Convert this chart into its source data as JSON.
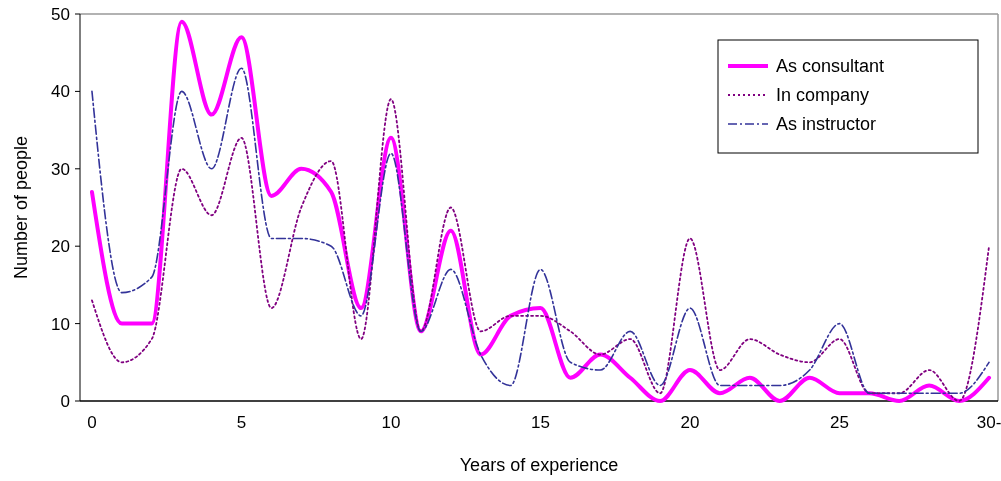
{
  "chart_data": {
    "type": "line",
    "xlabel": "Years of experience",
    "ylabel": "Number of people",
    "x": [
      0,
      1,
      2,
      3,
      4,
      5,
      6,
      7,
      8,
      9,
      10,
      11,
      12,
      13,
      14,
      15,
      16,
      17,
      18,
      19,
      20,
      21,
      22,
      23,
      24,
      25,
      26,
      27,
      28,
      29,
      30
    ],
    "xlim": [
      -0.4,
      30.3
    ],
    "xticks": [
      0,
      5,
      10,
      15,
      20,
      25,
      {
        "value": 30,
        "label": "30-"
      }
    ],
    "ylim": [
      0,
      50
    ],
    "yticks": [
      0,
      10,
      20,
      30,
      40,
      50
    ],
    "grid": false,
    "legend": "top right",
    "marker": "none",
    "series": [
      {
        "name": "As consultant",
        "color": "#ff00ff",
        "line_style": "solid",
        "values": [
          27,
          10,
          10,
          49,
          37,
          47,
          26.5,
          30,
          27,
          12,
          34,
          9,
          22,
          6,
          11,
          12,
          3,
          6,
          3,
          0,
          4,
          1,
          3,
          0,
          3,
          1,
          1,
          0,
          2,
          0,
          3
        ]
      },
      {
        "name": "In company",
        "color": "#800080",
        "line_style": "dotted",
        "values": [
          13,
          5,
          8,
          30,
          24,
          34,
          12,
          25,
          31,
          8,
          39,
          9,
          25,
          9,
          11,
          11,
          9,
          6,
          8,
          1,
          21,
          4,
          8,
          6,
          5,
          8,
          1,
          1,
          4,
          0,
          20
        ]
      },
      {
        "name": "As instructor",
        "color": "#333399",
        "line_style": "dashed",
        "values": [
          40,
          14,
          16,
          40,
          30,
          43,
          21,
          21,
          20,
          11,
          32,
          9,
          17,
          6,
          2,
          17,
          5,
          4,
          9,
          2,
          12,
          2,
          2,
          2,
          4,
          10,
          1,
          1,
          1,
          1,
          5
        ]
      }
    ]
  }
}
